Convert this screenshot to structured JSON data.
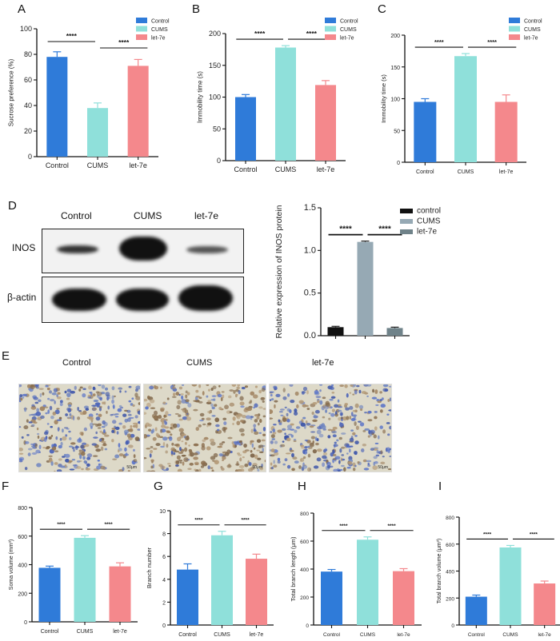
{
  "colors": {
    "control": "#2f7bd9",
    "cums": "#8fe0da",
    "let7e": "#f4888c",
    "wb_control": "#111111",
    "wb_cums": "#96a9b4",
    "wb_let7e": "#6f8289"
  },
  "panels": {
    "A": "A",
    "B": "B",
    "C": "C",
    "D": "D",
    "E": "E",
    "F": "F",
    "G": "G",
    "H": "H",
    "I": "I"
  },
  "western_blot": {
    "lanes": [
      "Control",
      "CUMS",
      "let-7e"
    ],
    "rows": [
      "INOS",
      "β-actin"
    ]
  },
  "ihc": {
    "labels": [
      "Control",
      "CUMS",
      "let-7e"
    ]
  },
  "chart_data": [
    {
      "panel": "A",
      "type": "bar",
      "title": "",
      "categories": [
        "Control",
        "CUMS",
        "let-7e"
      ],
      "values": [
        78,
        38,
        71
      ],
      "errors": [
        4,
        4,
        5
      ],
      "ylabel": "Sucrose preference (%)",
      "xlabel": "",
      "ylim": [
        0,
        100
      ],
      "yticks": [
        0,
        20,
        40,
        60,
        80,
        100
      ],
      "legend": [
        "Control",
        "CUMS",
        "let-7e"
      ],
      "legend_position": "top-right",
      "significance": [
        {
          "pair": [
            0,
            1
          ],
          "label": "****"
        },
        {
          "pair": [
            1,
            2
          ],
          "label": "****"
        }
      ]
    },
    {
      "panel": "B",
      "type": "bar",
      "title": "",
      "categories": [
        "Control",
        "CUMS",
        "let-7e"
      ],
      "values": [
        100,
        178,
        119
      ],
      "errors": [
        4,
        3,
        7
      ],
      "ylabel": "Immobility time (s)",
      "xlabel": "",
      "ylim": [
        0,
        200
      ],
      "yticks": [
        0,
        50,
        100,
        150,
        200
      ],
      "legend": [
        "Control",
        "CUMS",
        "let-7e"
      ],
      "legend_position": "top-right",
      "significance": [
        {
          "pair": [
            0,
            1
          ],
          "label": "****"
        },
        {
          "pair": [
            1,
            2
          ],
          "label": "****"
        }
      ]
    },
    {
      "panel": "C",
      "type": "bar",
      "title": "",
      "categories": [
        "Control",
        "CUMS",
        "let-7e"
      ],
      "values": [
        95,
        167,
        95
      ],
      "errors": [
        5,
        4,
        11
      ],
      "ylabel": "Immobility time (s)",
      "xlabel": "",
      "ylim": [
        0,
        200
      ],
      "yticks": [
        0,
        50,
        100,
        150,
        200
      ],
      "legend": [
        "Control",
        "CUMS",
        "let-7e"
      ],
      "legend_position": "top-right",
      "significance": [
        {
          "pair": [
            0,
            1
          ],
          "label": "****"
        },
        {
          "pair": [
            1,
            2
          ],
          "label": "****"
        }
      ]
    },
    {
      "panel": "D",
      "type": "bar",
      "title": "",
      "categories": [
        "control",
        "CUMS",
        "let-7e"
      ],
      "values": [
        0.1,
        1.1,
        0.09
      ],
      "errors": [
        0.01,
        0.01,
        0.01
      ],
      "ylabel": "Relative expression of INOS protein",
      "xlabel": "",
      "ylim": [
        0,
        1.5
      ],
      "yticks": [
        "0.0",
        "0.5",
        "1.0",
        "1.5"
      ],
      "legend": [
        "control",
        "CUMS",
        "let-7e"
      ],
      "legend_position": "top-right",
      "significance": [
        {
          "pair": [
            0,
            1
          ],
          "label": "****"
        },
        {
          "pair": [
            1,
            2
          ],
          "label": "****"
        }
      ]
    },
    {
      "panel": "F",
      "type": "bar",
      "title": "",
      "categories": [
        "Control",
        "CUMS",
        "let-7e"
      ],
      "values": [
        378,
        588,
        388
      ],
      "errors": [
        12,
        15,
        25
      ],
      "ylabel": "Soma volume (mm³)",
      "xlabel": "",
      "ylim": [
        0,
        800
      ],
      "yticks": [
        0,
        200,
        400,
        600,
        800
      ],
      "significance": [
        {
          "pair": [
            0,
            1
          ],
          "label": "****"
        },
        {
          "pair": [
            1,
            2
          ],
          "label": "****"
        }
      ]
    },
    {
      "panel": "G",
      "type": "bar",
      "title": "",
      "categories": [
        "Control",
        "CUMS",
        "let-7e"
      ],
      "values": [
        4.85,
        7.85,
        5.8
      ],
      "errors": [
        0.5,
        0.35,
        0.4
      ],
      "ylabel": "Branch number",
      "xlabel": "",
      "ylim": [
        0,
        10
      ],
      "yticks": [
        0,
        2,
        4,
        6,
        8,
        10
      ],
      "significance": [
        {
          "pair": [
            0,
            1
          ],
          "label": "****"
        },
        {
          "pair": [
            1,
            2
          ],
          "label": "****"
        }
      ]
    },
    {
      "panel": "H",
      "type": "bar",
      "title": "",
      "categories": [
        "Control",
        "CUMS",
        "let-7e"
      ],
      "values": [
        382,
        610,
        385
      ],
      "errors": [
        15,
        20,
        18
      ],
      "ylabel": "Total branch length (μm)",
      "xlabel": "",
      "ylim": [
        0,
        800
      ],
      "yticks": [
        0,
        200,
        400,
        600,
        800
      ],
      "significance": [
        {
          "pair": [
            0,
            1
          ],
          "label": "****"
        },
        {
          "pair": [
            1,
            2
          ],
          "label": "****"
        }
      ]
    },
    {
      "panel": "I",
      "type": "bar",
      "title": "",
      "categories": [
        "Control",
        "CUMS",
        "let-7e"
      ],
      "values": [
        210,
        575,
        308
      ],
      "errors": [
        12,
        15,
        18
      ],
      "ylabel": "Total branch volume (μm³)",
      "xlabel": "",
      "ylim": [
        0,
        800
      ],
      "yticks": [
        0,
        200,
        400,
        600,
        800
      ],
      "significance": [
        {
          "pair": [
            0,
            1
          ],
          "label": "****"
        },
        {
          "pair": [
            1,
            2
          ],
          "label": "****"
        }
      ]
    }
  ]
}
